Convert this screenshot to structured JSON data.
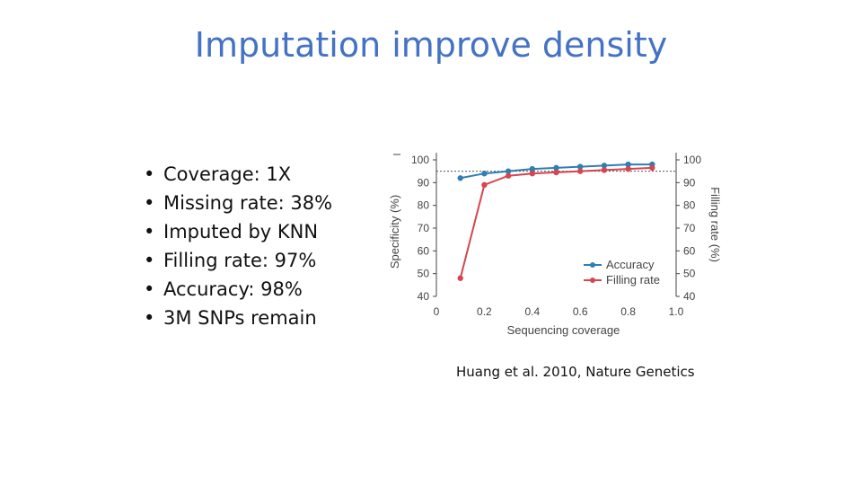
{
  "title": "Imputation improve density",
  "bullets": [
    "Coverage: 1X",
    "Missing rate: 38%",
    "Imputed by KNN",
    "Filling rate: 97%",
    "Accuracy: 98%",
    "3M SNPs remain"
  ],
  "citation": "Huang et al. 2010, Nature Genetics",
  "colors": {
    "title": "#4472c4",
    "accuracy": "#2e7fb3",
    "filling": "#d64550",
    "reference": "#555555"
  },
  "chart_data": {
    "type": "line",
    "xlabel": "Sequencing coverage",
    "ylabel": "Specificity (%)",
    "y2label": "Filling rate (%)",
    "xlim": [
      0,
      1.0
    ],
    "ylim": [
      40,
      100
    ],
    "y2lim": [
      40,
      100
    ],
    "xticks": [
      "0",
      "0.2",
      "0.4",
      "0.6",
      "0.8",
      "1.0"
    ],
    "yticks": [
      "40",
      "50",
      "60",
      "70",
      "80",
      "90",
      "100"
    ],
    "reference_line": 95,
    "legend_position": "bottom-right",
    "series": [
      {
        "name": "Accuracy",
        "x": [
          0.1,
          0.2,
          0.3,
          0.4,
          0.5,
          0.6,
          0.7,
          0.8,
          0.9
        ],
        "values": [
          92,
          94,
          95,
          96,
          96.5,
          97,
          97.5,
          98,
          98
        ]
      },
      {
        "name": "Filling rate",
        "x": [
          0.1,
          0.2,
          0.3,
          0.4,
          0.5,
          0.6,
          0.7,
          0.8,
          0.9
        ],
        "values": [
          48,
          89,
          93,
          94,
          94.5,
          95,
          95.5,
          96,
          96.5
        ]
      }
    ]
  }
}
